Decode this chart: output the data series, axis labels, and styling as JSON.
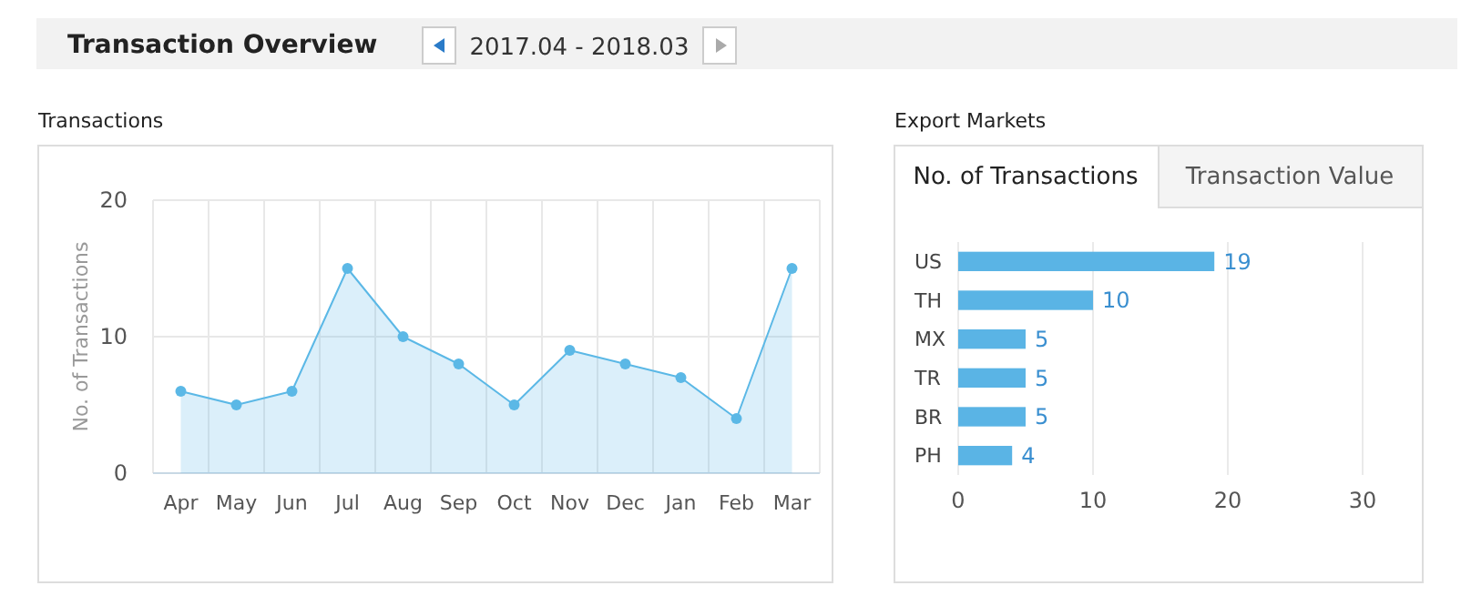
{
  "chart_data": [
    {
      "type": "other",
      "title": "Transaction Overview",
      "subtitle": "2017.04 - 2018.03"
    },
    {
      "type": "area",
      "title": "Transactions",
      "ylabel": "No. of Transactions",
      "categories": [
        "Apr",
        "May",
        "Jun",
        "Jul",
        "Aug",
        "Sep",
        "Oct",
        "Nov",
        "Dec",
        "Jan",
        "Feb",
        "Mar"
      ],
      "values": [
        6,
        5,
        6,
        15,
        10,
        8,
        5,
        9,
        8,
        7,
        4,
        15
      ],
      "color": "#5bb8e6",
      "ylim": [
        0,
        20
      ],
      "yticks": [
        0,
        10,
        20
      ],
      "grid": true,
      "marker": "circle",
      "line_style": "solid"
    },
    {
      "type": "bar",
      "orientation": "horizontal",
      "title": "Export Markets",
      "annotations": [
        "No. of Transactions",
        "Transaction Value"
      ],
      "categories": [
        "US",
        "TH",
        "MX",
        "TR",
        "BR",
        "PH"
      ],
      "values": [
        19,
        10,
        5,
        5,
        5,
        4
      ],
      "color": "#5ab4e5",
      "xlim": [
        0,
        30
      ],
      "xticks": [
        0,
        10,
        20,
        30
      ],
      "grid": "x",
      "data_labels": true
    }
  ]
}
